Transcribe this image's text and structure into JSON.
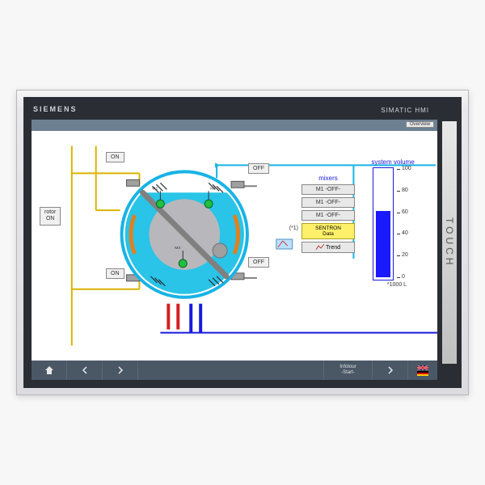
{
  "device": {
    "brand": "SIEMENS",
    "model": "SIMATIC HMI",
    "touch_label": "TOUCH"
  },
  "topbar": {
    "overview_btn": "Overview"
  },
  "diagram": {
    "rotor_label": "rotor\nON",
    "on_label": "ON",
    "off_label": "OFF",
    "colors": {
      "pipe_yellow": "#d9b400",
      "pipe_cyan": "#18b3e6",
      "pipe_blue": "#1a1adc",
      "pipe_red": "#d22020",
      "drum_outer": "#18b3e6",
      "drum_inner": "#b8b8bc",
      "hatch": "#2a2e34"
    },
    "sensor_labels": [
      "M1",
      "M2",
      "M3"
    ],
    "canvas_bg": "#ffffff"
  },
  "mixers": {
    "title": "mixers",
    "items": [
      "M1  -OFF-",
      "M1  -OFF-",
      "M1  -OFF-"
    ],
    "sentron": "SENTRON\nData",
    "trend": "Trend",
    "star_note": "(*1)"
  },
  "volume": {
    "title": "system volume",
    "unit": "*1000 L",
    "max": 100,
    "value": 62,
    "ticks": [
      100,
      80,
      60,
      40,
      20,
      0
    ],
    "bar_color": "#1a1afc",
    "border_color": "#1a1adc"
  },
  "navbar": {
    "info_line1": "Infotour",
    "info_line2": "-Start-"
  }
}
